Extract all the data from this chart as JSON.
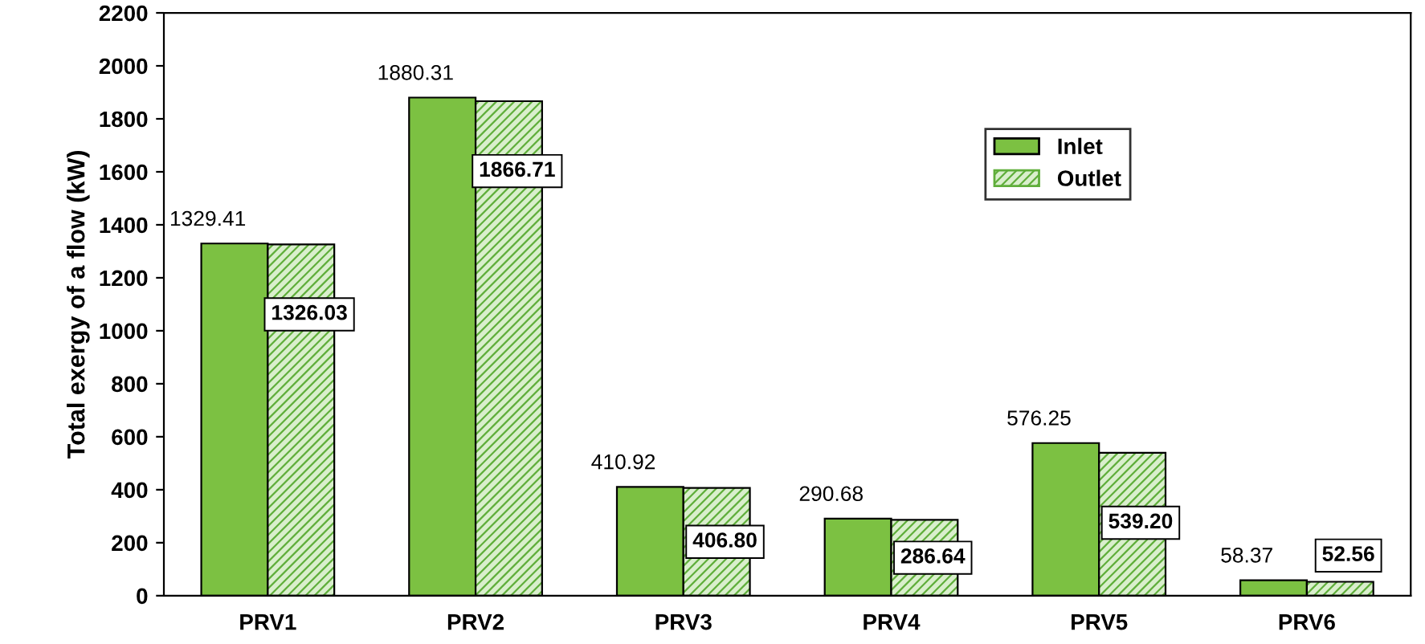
{
  "chart_data": {
    "type": "bar",
    "ylabel": "Total exergy of a flow (kW)",
    "categories": [
      "PRV1",
      "PRV2",
      "PRV3",
      "PRV4",
      "PRV5",
      "PRV6"
    ],
    "series": [
      {
        "name": "Inlet",
        "color": "#7cc142",
        "values": [
          1329.41,
          1880.31,
          410.92,
          290.68,
          576.25,
          58.37
        ],
        "value_labels": [
          "1329.41",
          "1880.31",
          "410.92",
          "290.68",
          "576.25",
          "58.37"
        ]
      },
      {
        "name": "Outlet",
        "color": "#5fae3a",
        "values": [
          1326.03,
          1866.71,
          406.8,
          286.64,
          539.2,
          52.56
        ],
        "value_labels": [
          "1326.03",
          "1866.71",
          "406.80",
          "286.64",
          "539.20",
          "52.56"
        ]
      }
    ],
    "ylim": [
      0,
      2200
    ],
    "yticks": [
      0,
      200,
      400,
      600,
      800,
      1000,
      1200,
      1400,
      1600,
      1800,
      2000,
      2200
    ],
    "grid": false,
    "legend": "top right"
  }
}
